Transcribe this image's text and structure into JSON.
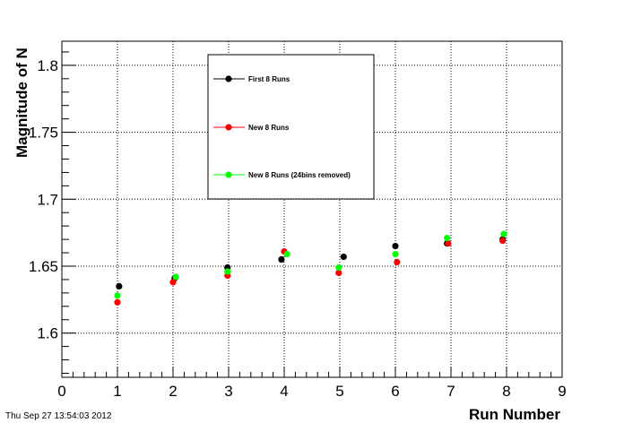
{
  "timestamp": "Thu Sep 27 13:54:03 2012",
  "chart_data": {
    "type": "scatter",
    "xlabel": "Run Number",
    "ylabel": "Magnitude of N",
    "xlim": [
      0,
      9
    ],
    "ylim": [
      1.567,
      1.818
    ],
    "x_ticks": [
      "0",
      "1",
      "2",
      "3",
      "4",
      "5",
      "6",
      "7",
      "8",
      "9"
    ],
    "y_ticks": [
      "1.6",
      "1.65",
      "1.7",
      "1.75",
      "1.8"
    ],
    "grid": true,
    "legend_position": "top-center",
    "series": [
      {
        "name": "First 8 Runs",
        "color": "#000000",
        "points": [
          [
            1.03,
            1.635
          ],
          [
            2.03,
            1.641
          ],
          [
            2.98,
            1.649
          ],
          [
            3.95,
            1.655
          ],
          [
            5.07,
            1.657
          ],
          [
            6.0,
            1.665
          ],
          [
            6.93,
            1.667
          ],
          [
            7.93,
            1.67
          ]
        ]
      },
      {
        "name": "New 8 Runs",
        "color": "#ff0000",
        "points": [
          [
            1.0,
            1.623
          ],
          [
            2.0,
            1.638
          ],
          [
            2.98,
            1.643
          ],
          [
            4.0,
            1.661
          ],
          [
            4.98,
            1.645
          ],
          [
            6.03,
            1.653
          ],
          [
            6.95,
            1.667
          ],
          [
            7.93,
            1.669
          ]
        ]
      },
      {
        "name": "New 8 Runs (24bins removed)",
        "color": "#00ff00",
        "points": [
          [
            1.0,
            1.628
          ],
          [
            2.05,
            1.642
          ],
          [
            2.98,
            1.646
          ],
          [
            4.05,
            1.659
          ],
          [
            4.98,
            1.649
          ],
          [
            6.0,
            1.659
          ],
          [
            6.93,
            1.671
          ],
          [
            7.95,
            1.674
          ]
        ]
      }
    ]
  }
}
